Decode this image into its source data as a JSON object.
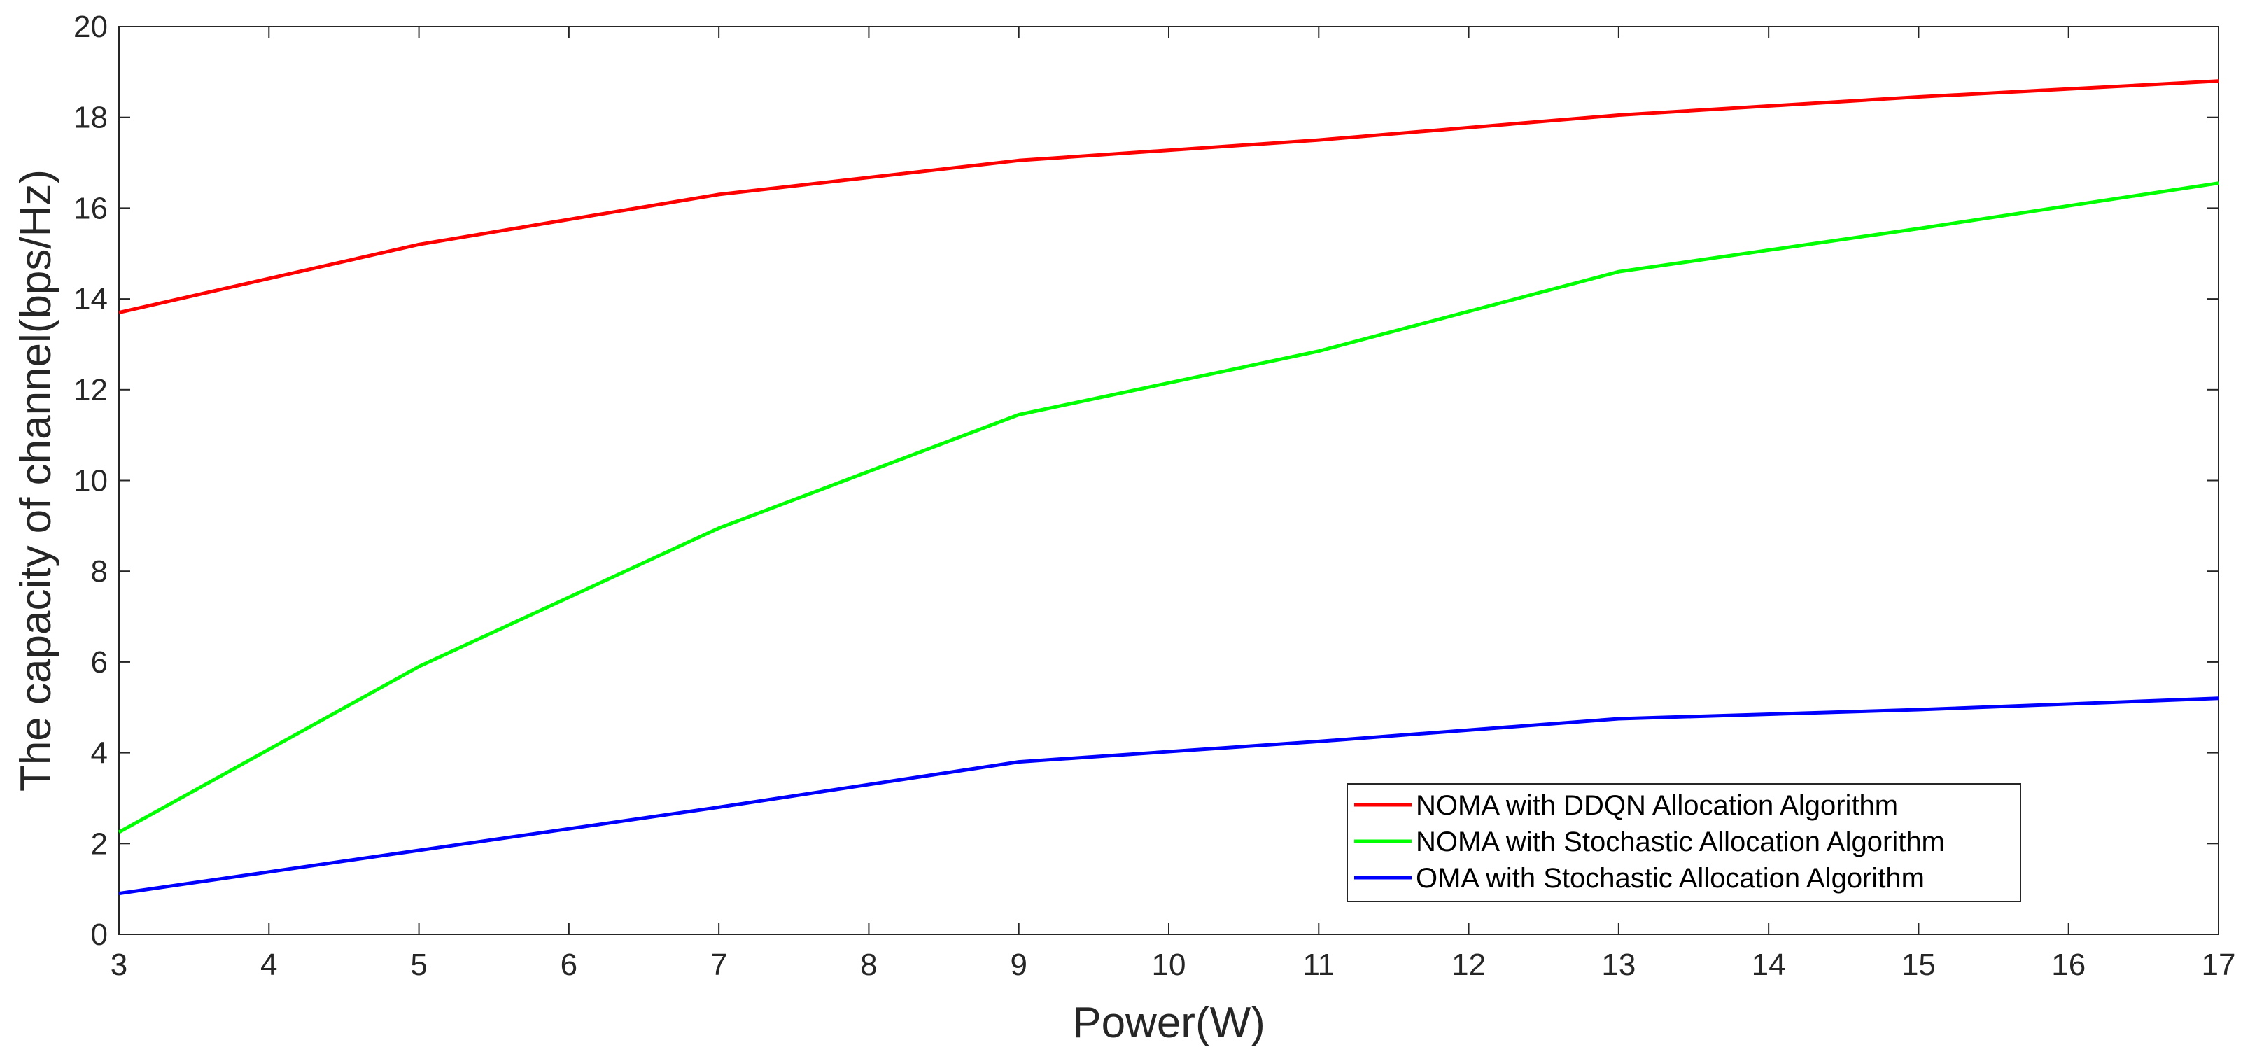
{
  "chart_data": {
    "type": "line",
    "title": "",
    "xlabel": "Power(W)",
    "ylabel": "The capacity of channel(bps/Hz)",
    "xlim": [
      3,
      17
    ],
    "ylim": [
      0,
      20
    ],
    "xticks": [
      3,
      4,
      5,
      6,
      7,
      8,
      9,
      10,
      11,
      12,
      13,
      14,
      15,
      16,
      17
    ],
    "yticks": [
      0,
      2,
      4,
      6,
      8,
      10,
      12,
      14,
      16,
      18,
      20
    ],
    "x": [
      3,
      5,
      7,
      9,
      11,
      13,
      15,
      17
    ],
    "series": [
      {
        "name": "NOMA with DDQN Allocation Algorithm",
        "color": "#ff0000",
        "values": [
          13.7,
          15.2,
          16.3,
          17.05,
          17.5,
          18.05,
          18.45,
          18.8
        ]
      },
      {
        "name": "NOMA with Stochastic Allocation Algorithm",
        "color": "#00ff00",
        "values": [
          2.25,
          5.9,
          8.95,
          11.45,
          12.85,
          14.6,
          15.55,
          16.55
        ]
      },
      {
        "name": "OMA with Stochastic Allocation Algorithm",
        "color": "#0000ff",
        "values": [
          0.9,
          1.85,
          2.8,
          3.8,
          4.25,
          4.75,
          4.95,
          5.2
        ]
      }
    ],
    "legend_position": "bottom-right",
    "grid": false
  }
}
